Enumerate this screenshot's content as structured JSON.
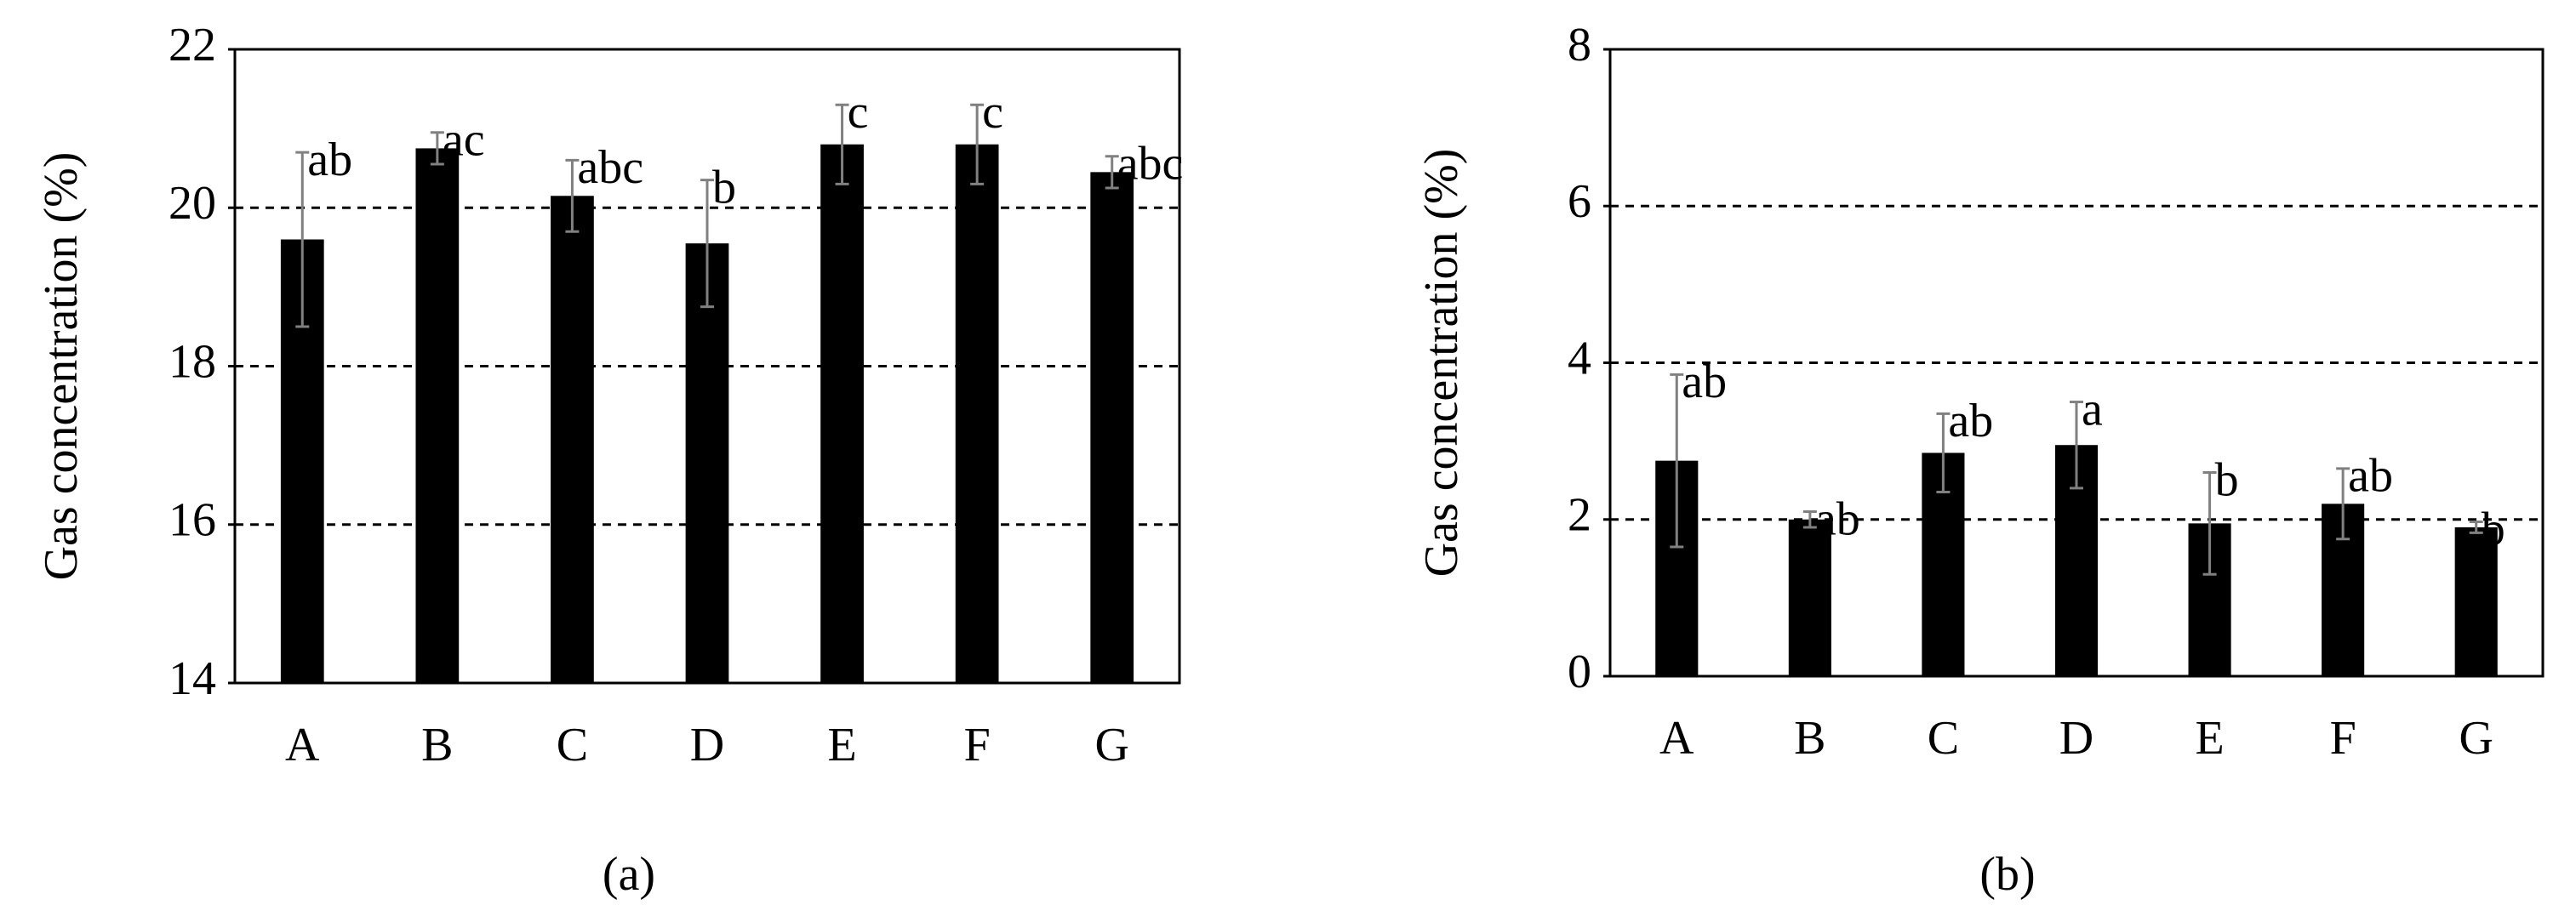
{
  "chart_data": [
    {
      "type": "bar",
      "caption": "(a)",
      "ylabel": "Gas concentration (%)",
      "categories": [
        "A",
        "B",
        "C",
        "D",
        "E",
        "F",
        "G"
      ],
      "values": [
        19.6,
        20.75,
        20.15,
        19.55,
        20.8,
        20.8,
        20.45
      ],
      "errors": [
        1.1,
        0.2,
        0.45,
        0.8,
        0.5,
        0.5,
        0.2
      ],
      "annotations": [
        "ab",
        "ac",
        "abc",
        "b",
        "c",
        "c",
        "abc"
      ],
      "color": "#000000",
      "error_color": "#808080",
      "ylim": [
        14,
        22
      ],
      "yticks": [
        14,
        16,
        18,
        20,
        22
      ],
      "grid": true
    },
    {
      "type": "bar",
      "caption": "(b)",
      "ylabel": "Gas concentration (%)",
      "categories": [
        "A",
        "B",
        "C",
        "D",
        "E",
        "F",
        "G"
      ],
      "values": [
        2.75,
        2.0,
        2.85,
        2.95,
        1.95,
        2.2,
        1.9
      ],
      "errors": [
        1.1,
        0.1,
        0.5,
        0.55,
        0.65,
        0.45,
        0.07
      ],
      "annotations": [
        "ab",
        "ab",
        "ab",
        "a",
        "b",
        "ab",
        "b"
      ],
      "color": "#000000",
      "error_color": "#808080",
      "ylim": [
        0,
        8
      ],
      "yticks": [
        0,
        2,
        4,
        6,
        8
      ],
      "grid": true
    }
  ]
}
